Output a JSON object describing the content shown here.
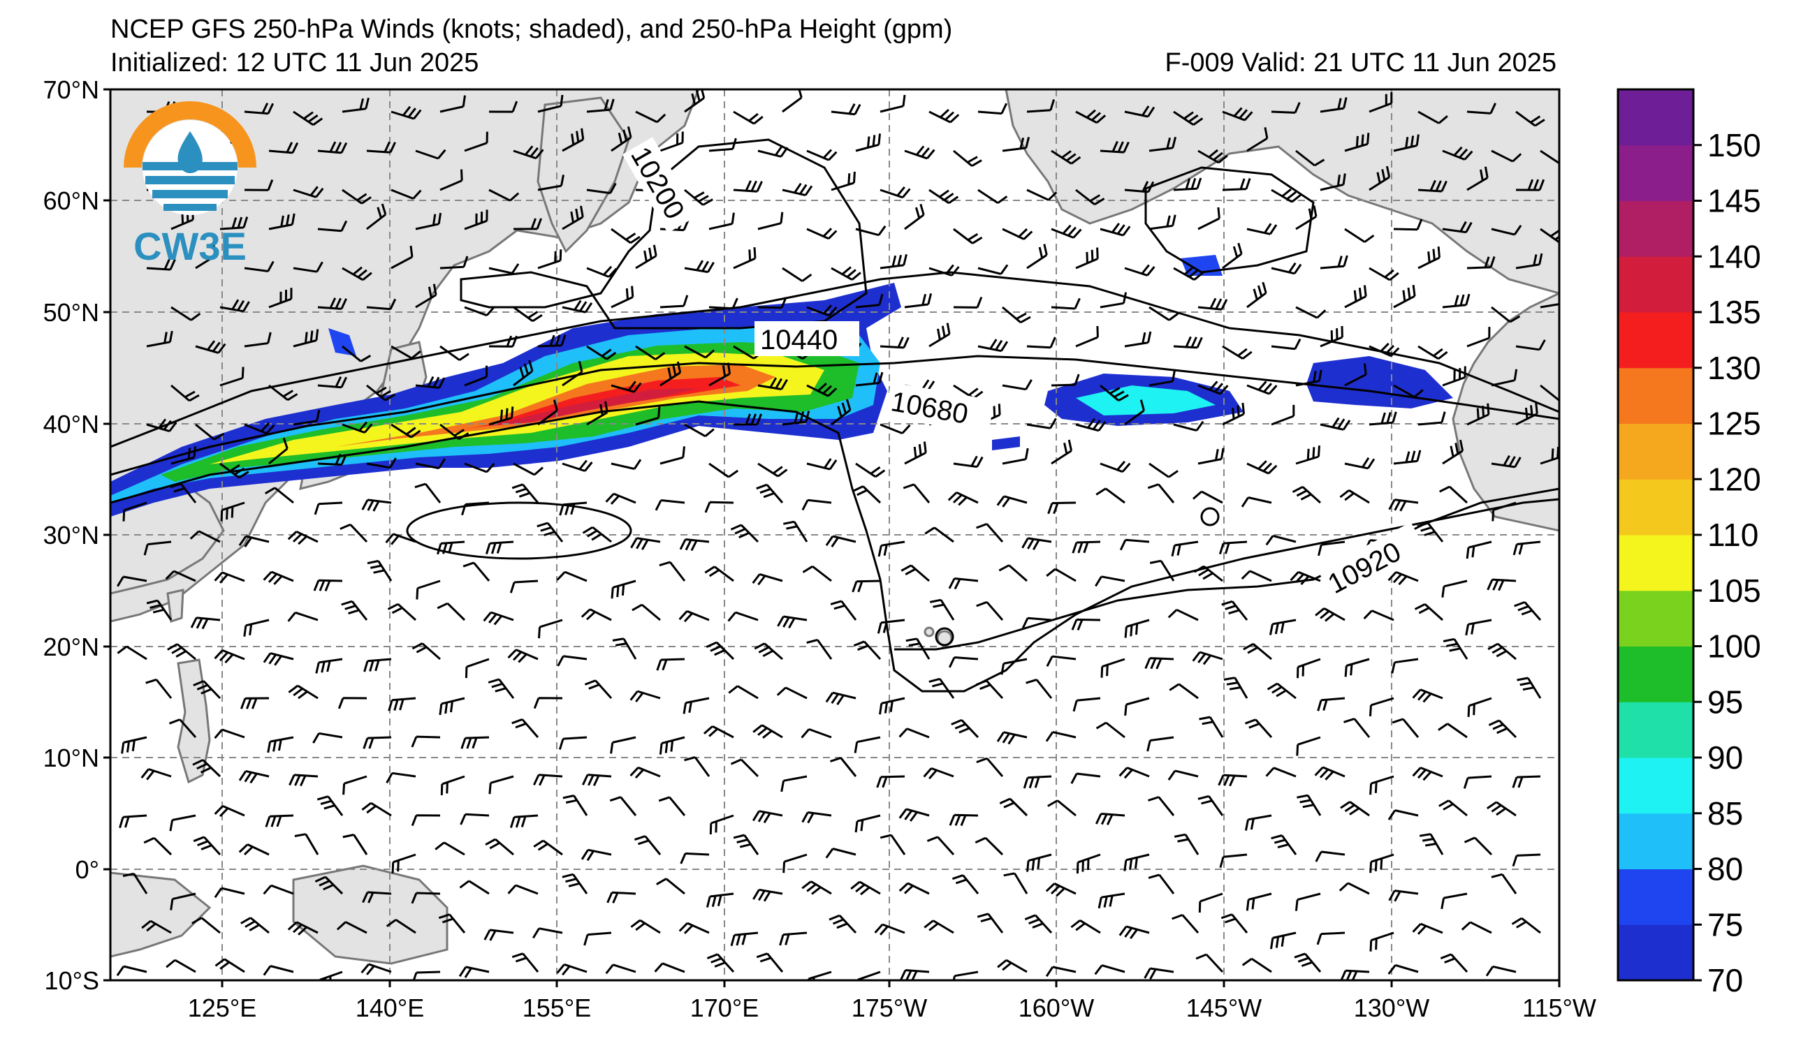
{
  "title": {
    "line1": "NCEP GFS 250-hPa Winds (knots; shaded), and 250-hPa Height (gpm)",
    "line2": "Initialized: 12 UTC 11 Jun 2025",
    "valid": "F-009  Valid: 21 UTC 11 Jun 2025"
  },
  "logo": {
    "text": "CW3E",
    "icon": "cw3e-logo-icon",
    "colors": [
      "#f7941d",
      "#2b8fbf"
    ]
  },
  "axes": {
    "lon_labels": [
      "125°E",
      "140°E",
      "155°E",
      "170°E",
      "175°W",
      "160°W",
      "145°W",
      "130°W",
      "115°W"
    ],
    "lat_labels": [
      "70°N",
      "60°N",
      "50°N",
      "40°N",
      "30°N",
      "20°N",
      "10°N",
      "0°",
      "10°S"
    ]
  },
  "colorbar": {
    "labels": [
      "70",
      "75",
      "80",
      "85",
      "90",
      "95",
      "100",
      "105",
      "110",
      "120",
      "125",
      "130",
      "135",
      "140",
      "145",
      "150"
    ],
    "colors": [
      "#1e2fd0",
      "#1f45f0",
      "#1fc0fa",
      "#1ff2f2",
      "#1ee0a8",
      "#1ebd2a",
      "#7ad21e",
      "#f5f51e",
      "#f5c81e",
      "#f5a81e",
      "#f5781e",
      "#f51e1e",
      "#d21e3c",
      "#b01e64",
      "#8c1e8c",
      "#6e1e96"
    ]
  },
  "contours": {
    "labels": [
      "10200",
      "10440",
      "10680",
      "10920"
    ]
  }
}
